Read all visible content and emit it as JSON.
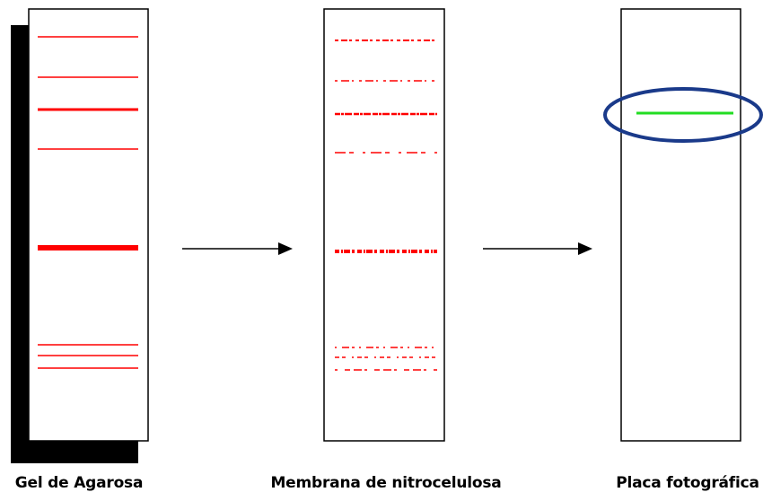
{
  "panels": [
    {
      "id": "gel",
      "label": "Gel de Agarosa"
    },
    {
      "id": "membrane",
      "label": "Membrana de nitrocelulosa"
    },
    {
      "id": "plate",
      "label": "Placa fotográfica"
    }
  ],
  "colors": {
    "band": "#ff0000",
    "detected_band": "#22dd22",
    "highlight_ring": "#1a3a8a",
    "shadow": "#000000",
    "outline": "#000000"
  },
  "icons": [
    "arrow-right-icon",
    "arrow-right-icon",
    "ellipse-highlight-icon"
  ]
}
